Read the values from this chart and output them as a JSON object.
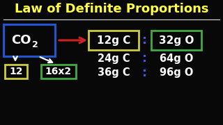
{
  "title": "Law of Definite Proportions",
  "title_color": "#FFFF44",
  "bg_color": "#080808",
  "co2_box_color": "#2255CC",
  "arrow_color": "#CC2222",
  "row1_left": "12g C",
  "row1_right": "32g O",
  "row1_left_box": "#CCCC44",
  "row1_right_box": "#44AA44",
  "row2_left": "24g C",
  "row2_right": "64g O",
  "row3_left": "36g C",
  "row3_right": "96g O",
  "bottom_left": "12",
  "bottom_left_box": "#CCCC44",
  "bottom_right": "16x2",
  "bottom_right_box": "#44AA44",
  "text_color": "#FFFFFF",
  "colon_color": "#4455EE",
  "separator_color": "#CCCCCC"
}
